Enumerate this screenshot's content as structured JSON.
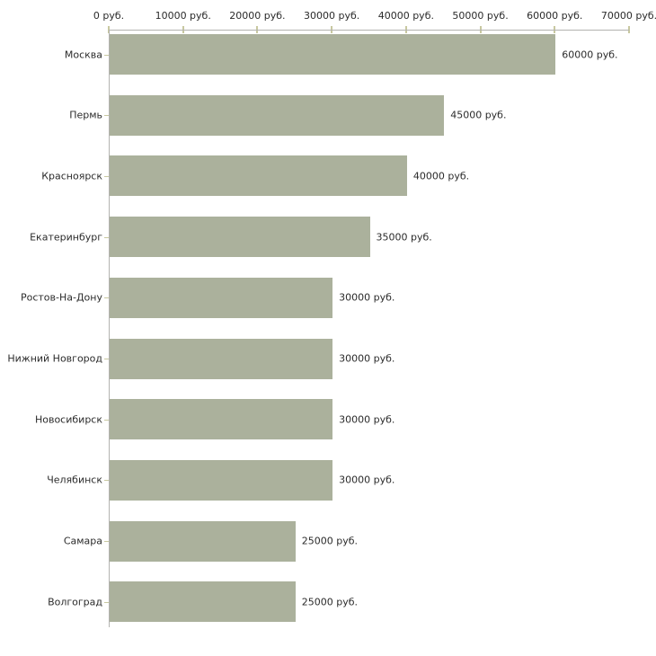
{
  "chart_data": {
    "type": "bar",
    "orientation": "horizontal",
    "unit": "руб.",
    "categories": [
      "Москва",
      "Пермь",
      "Красноярск",
      "Екатеринбург",
      "Ростов-На-Дону",
      "Нижний Новгород",
      "Новосибирск",
      "Челябинск",
      "Самара",
      "Волгоград"
    ],
    "values": [
      60000,
      45000,
      40000,
      35000,
      30000,
      30000,
      30000,
      30000,
      25000,
      25000
    ],
    "value_labels": [
      "60000 руб.",
      "45000 руб.",
      "40000 руб.",
      "35000 руб.",
      "30000 руб.",
      "30000 руб.",
      "30000 руб.",
      "30000 руб.",
      "25000 руб.",
      "25000 руб."
    ],
    "x_ticks": [
      {
        "value": 0,
        "label": "0 руб."
      },
      {
        "value": 10000,
        "label": "10000 руб."
      },
      {
        "value": 20000,
        "label": "20000 руб."
      },
      {
        "value": 30000,
        "label": "30000 руб."
      },
      {
        "value": 40000,
        "label": "40000 руб."
      },
      {
        "value": 50000,
        "label": "50000 руб."
      },
      {
        "value": 60000,
        "label": "60000 руб."
      },
      {
        "value": 70000,
        "label": "70000 руб."
      }
    ],
    "xlim": [
      0,
      70000
    ],
    "grid": false,
    "legend": false,
    "xlabel": "",
    "ylabel": "",
    "colors": {
      "bar_fill": "#abb19c",
      "axis_line": "#b3b3b0",
      "tick_mark": "#c8c8a0",
      "text": "#2b2b2b",
      "background": "#ffffff"
    }
  }
}
